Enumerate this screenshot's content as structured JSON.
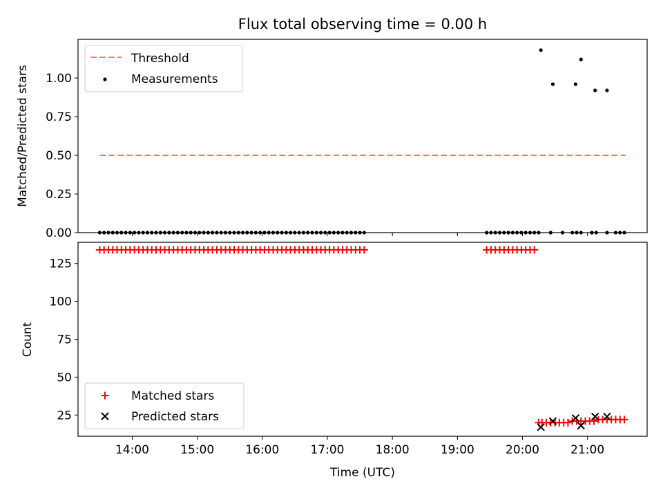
{
  "chart_data": {
    "title": "Flux total observing time = 0.00 h",
    "xlabel": "Time (UTC)",
    "x_ticks": [
      "14:00",
      "15:00",
      "16:00",
      "17:00",
      "18:00",
      "19:00",
      "20:00",
      "21:00"
    ],
    "xlim": [
      "13:10",
      "21:55"
    ],
    "panels": [
      {
        "type": "scatter",
        "ylabel": "Matched/Predicted stars",
        "ylim": [
          0,
          1.25
        ],
        "y_ticks": [
          "0.00",
          "0.25",
          "0.50",
          "0.75",
          "1.00"
        ],
        "legend_position": "upper-left",
        "series": [
          {
            "name": "Threshold",
            "kind": "dashed-line",
            "color": "#ff7070",
            "x": [
              "13:30",
              "21:35"
            ],
            "y": [
              0.5,
              0.5
            ]
          },
          {
            "name": "Measurements",
            "kind": "dot",
            "color": "#000000",
            "x": [
              "13:30",
              "13:34",
              "13:38",
              "13:42",
              "13:46",
              "13:50",
              "13:54",
              "13:58",
              "14:02",
              "14:06",
              "14:10",
              "14:14",
              "14:18",
              "14:22",
              "14:26",
              "14:30",
              "14:34",
              "14:38",
              "14:42",
              "14:46",
              "14:50",
              "14:54",
              "14:58",
              "15:02",
              "15:06",
              "15:10",
              "15:14",
              "15:18",
              "15:22",
              "15:26",
              "15:30",
              "15:34",
              "15:38",
              "15:42",
              "15:46",
              "15:50",
              "15:54",
              "15:58",
              "16:02",
              "16:06",
              "16:10",
              "16:14",
              "16:18",
              "16:22",
              "16:26",
              "16:30",
              "16:34",
              "16:38",
              "16:42",
              "16:46",
              "16:50",
              "16:54",
              "16:58",
              "17:02",
              "17:06",
              "17:10",
              "17:14",
              "17:18",
              "17:22",
              "17:26",
              "17:30",
              "17:34",
              "19:27",
              "19:31",
              "19:35",
              "19:39",
              "19:43",
              "19:47",
              "19:51",
              "19:55",
              "19:59",
              "20:03",
              "20:07",
              "20:11",
              "20:15",
              "20:26",
              "20:37",
              "20:46",
              "20:50",
              "20:54",
              "21:04",
              "21:08",
              "21:18",
              "21:26",
              "21:30",
              "21:34",
              "20:17",
              "20:28",
              "20:49",
              "20:54",
              "21:07",
              "21:18"
            ],
            "y": [
              0,
              0,
              0,
              0,
              0,
              0,
              0,
              0,
              0,
              0,
              0,
              0,
              0,
              0,
              0,
              0,
              0,
              0,
              0,
              0,
              0,
              0,
              0,
              0,
              0,
              0,
              0,
              0,
              0,
              0,
              0,
              0,
              0,
              0,
              0,
              0,
              0,
              0,
              0,
              0,
              0,
              0,
              0,
              0,
              0,
              0,
              0,
              0,
              0,
              0,
              0,
              0,
              0,
              0,
              0,
              0,
              0,
              0,
              0,
              0,
              0,
              0,
              0,
              0,
              0,
              0,
              0,
              0,
              0,
              0,
              0,
              0,
              0,
              0,
              0,
              0,
              0,
              0,
              0,
              0,
              0,
              0,
              0,
              0,
              0,
              0,
              1.18,
              0.96,
              0.96,
              1.12,
              0.92,
              0.92
            ]
          }
        ]
      },
      {
        "type": "scatter",
        "ylabel": "Count",
        "ylim": [
          11,
          139
        ],
        "y_ticks": [
          "25",
          "50",
          "75",
          "100",
          "125"
        ],
        "legend_position": "lower-left",
        "series": [
          {
            "name": "Matched stars",
            "marker": "plus",
            "color": "#ff0000",
            "x": [
              "13:30",
              "13:34",
              "13:38",
              "13:42",
              "13:46",
              "13:50",
              "13:54",
              "13:58",
              "14:02",
              "14:06",
              "14:10",
              "14:14",
              "14:18",
              "14:22",
              "14:26",
              "14:30",
              "14:34",
              "14:38",
              "14:42",
              "14:46",
              "14:50",
              "14:54",
              "14:58",
              "15:02",
              "15:06",
              "15:10",
              "15:14",
              "15:18",
              "15:22",
              "15:26",
              "15:30",
              "15:34",
              "15:38",
              "15:42",
              "15:46",
              "15:50",
              "15:54",
              "15:58",
              "16:02",
              "16:06",
              "16:10",
              "16:14",
              "16:18",
              "16:22",
              "16:26",
              "16:30",
              "16:34",
              "16:38",
              "16:42",
              "16:46",
              "16:50",
              "16:54",
              "16:58",
              "17:02",
              "17:06",
              "17:10",
              "17:14",
              "17:18",
              "17:22",
              "17:26",
              "17:30",
              "17:34",
              "19:27",
              "19:31",
              "19:35",
              "19:39",
              "19:43",
              "19:47",
              "19:51",
              "19:55",
              "19:59",
              "20:03",
              "20:07",
              "20:11",
              "20:15",
              "20:18",
              "20:22",
              "20:26",
              "20:30",
              "20:34",
              "20:38",
              "20:42",
              "20:46",
              "20:50",
              "20:54",
              "20:58",
              "21:02",
              "21:06",
              "21:10",
              "21:14",
              "21:18",
              "21:22",
              "21:26",
              "21:30",
              "21:34"
            ],
            "y": [
              134,
              134,
              134,
              134,
              134,
              134,
              134,
              134,
              134,
              134,
              134,
              134,
              134,
              134,
              134,
              134,
              134,
              134,
              134,
              134,
              134,
              134,
              134,
              134,
              134,
              134,
              134,
              134,
              134,
              134,
              134,
              134,
              134,
              134,
              134,
              134,
              134,
              134,
              134,
              134,
              134,
              134,
              134,
              134,
              134,
              134,
              134,
              134,
              134,
              134,
              134,
              134,
              134,
              134,
              134,
              134,
              134,
              134,
              134,
              134,
              134,
              134,
              134,
              134,
              134,
              134,
              134,
              134,
              134,
              134,
              134,
              134,
              134,
              134,
              20,
              20,
              20,
              20,
              20,
              20,
              20,
              20,
              21,
              21,
              21,
              21,
              21,
              21,
              22,
              22,
              22,
              22,
              22,
              22,
              22
            ]
          },
          {
            "name": "Predicted stars",
            "marker": "x",
            "color": "#000000",
            "x": [
              "20:17",
              "20:28",
              "20:49",
              "20:54",
              "21:07",
              "21:18"
            ],
            "y": [
              17,
              21,
              23,
              18,
              24,
              24
            ]
          }
        ]
      }
    ]
  }
}
